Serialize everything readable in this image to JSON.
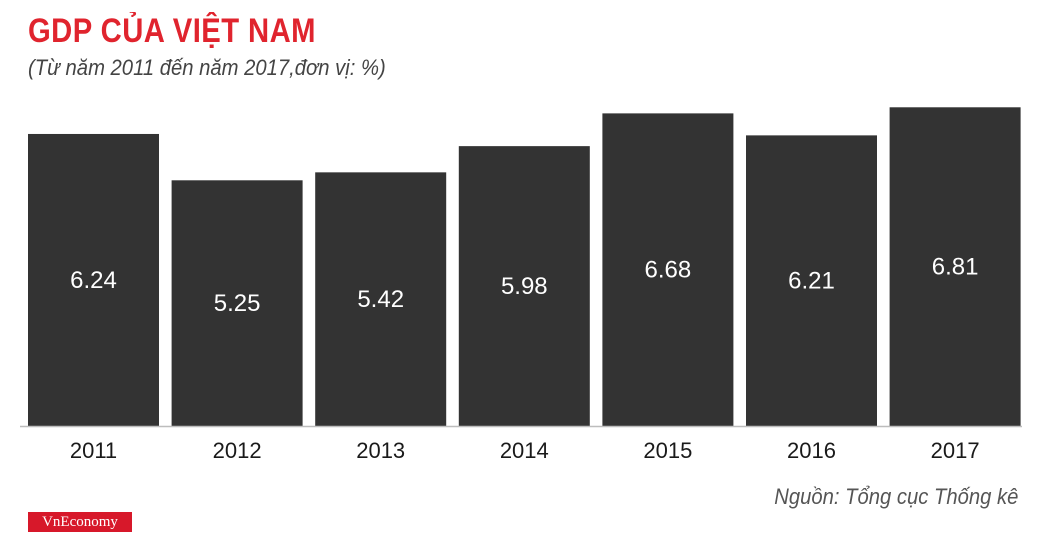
{
  "chart_data": {
    "type": "bar",
    "title": "GDP CỦA VIỆT NAM",
    "subtitle": "(Từ năm 2011 đến năm 2017,đơn vị: %)",
    "categories": [
      "2011",
      "2012",
      "2013",
      "2014",
      "2015",
      "2016",
      "2017"
    ],
    "values": [
      6.24,
      5.25,
      5.42,
      5.98,
      6.68,
      6.21,
      6.81
    ],
    "value_labels": [
      "6.24",
      "5.25",
      "5.42",
      "5.98",
      "6.68",
      "6.21",
      "6.81"
    ],
    "xlabel": "",
    "ylabel": "",
    "grid": false,
    "source": "Nguồn: Tổng cục Thống kê",
    "colors": {
      "bar": "#333333",
      "title": "#e0242e",
      "label": "#ffffff"
    }
  },
  "brand": {
    "name": "VnEconomy",
    "color": "#d7182a"
  }
}
